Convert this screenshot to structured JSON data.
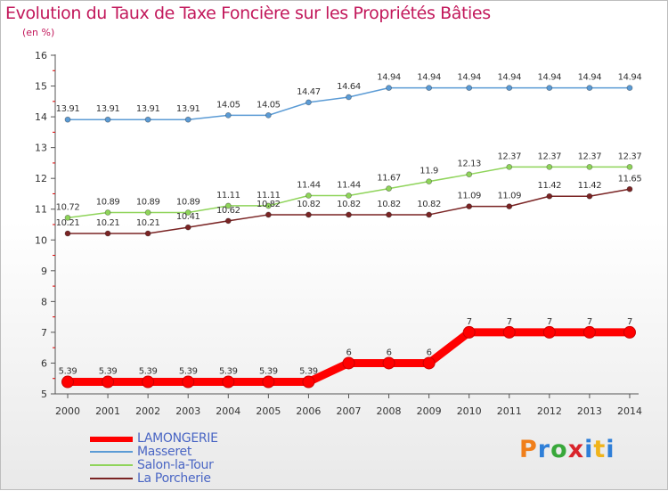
{
  "chart_data": {
    "type": "line",
    "title": "Evolution du Taux de Taxe Foncière sur les Propriétés Bâties",
    "subtitle": "(en %)",
    "xlabel": "",
    "ylabel": "",
    "ylim": [
      5,
      16
    ],
    "yticks": [
      "5",
      "6",
      "7",
      "8",
      "9",
      "10",
      "11",
      "12",
      "13",
      "14",
      "15",
      "16"
    ],
    "x": [
      "2000",
      "2001",
      "2002",
      "2003",
      "2004",
      "2005",
      "2006",
      "2007",
      "2008",
      "2009",
      "2010",
      "2011",
      "2012",
      "2013",
      "2014"
    ],
    "grid": false,
    "legend_position": "bottom-left",
    "series": [
      {
        "name": "LAMONGERIE",
        "color": "#ff0000",
        "values": [
          5.39,
          5.39,
          5.39,
          5.39,
          5.39,
          5.39,
          5.39,
          6,
          6,
          6,
          7,
          7,
          7,
          7,
          7
        ],
        "labels": [
          "5.39",
          "5.39",
          "5.39",
          "5.39",
          "5.39",
          "5.39",
          "5.39",
          "6",
          "6",
          "6",
          "7",
          "7",
          "7",
          "7",
          "7"
        ]
      },
      {
        "name": "Masseret",
        "color": "#5b9bd5",
        "values": [
          13.91,
          13.91,
          13.91,
          13.91,
          14.05,
          14.05,
          14.47,
          14.64,
          14.94,
          14.94,
          14.94,
          14.94,
          14.94,
          14.94,
          14.94
        ],
        "labels": [
          "13.91",
          "13.91",
          "13.91",
          "13.91",
          "14.05",
          "14.05",
          "14.47",
          "14.64",
          "14.94",
          "14.94",
          "14.94",
          "14.94",
          "14.94",
          "14.94",
          "14.94"
        ]
      },
      {
        "name": "Salon-la-Tour",
        "color": "#8fd45a",
        "values": [
          10.72,
          10.89,
          10.89,
          10.89,
          11.11,
          11.11,
          11.44,
          11.44,
          11.67,
          11.9,
          12.13,
          12.37,
          12.37,
          12.37,
          12.37
        ],
        "labels": [
          "10.72",
          "10.89",
          "10.89",
          "10.89",
          "11.11",
          "11.11",
          "11.44",
          "11.44",
          "11.67",
          "11.9",
          "12.13",
          "12.37",
          "12.37",
          "12.37",
          "12.37"
        ]
      },
      {
        "name": "La Porcherie",
        "color": "#7a2424",
        "values": [
          10.21,
          10.21,
          10.21,
          10.41,
          10.62,
          10.82,
          10.82,
          10.82,
          10.82,
          10.82,
          11.09,
          11.09,
          11.42,
          11.42,
          11.65
        ],
        "labels": [
          "10.21",
          "10.21",
          "10.21",
          "10.41",
          "10.62",
          "10.82",
          "10.82",
          "10.82",
          "10.82",
          "10.82",
          "11.09",
          "11.09",
          "11.42",
          "11.42",
          "11.65"
        ]
      }
    ]
  },
  "logo_text": "Proxiti"
}
